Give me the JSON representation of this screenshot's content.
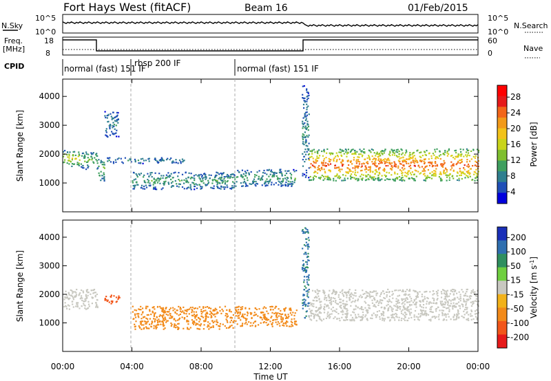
{
  "header": {
    "title": "Fort Hays West (fitACF)",
    "beam": "Beam 16",
    "date": "01/Feb/2015"
  },
  "noise_panel": {
    "left_label": "N.Sky",
    "right_label": "N.Search",
    "left_ticks": [
      "10^5",
      "10^0"
    ],
    "right_ticks": [
      "10^5",
      "10^0"
    ]
  },
  "freq_panel": {
    "left_label_1": "Freq.",
    "left_label_2": "[MHz]",
    "right_label": "Nave",
    "left_ticks": [
      "18",
      "8"
    ],
    "right_ticks": [
      "60",
      "0"
    ]
  },
  "cpid": {
    "label": "CPID",
    "modes": [
      {
        "name": "normal (fast) 151 IF",
        "start_h": 0
      },
      {
        "name": "rbsp 200 IF",
        "start_h": 4.0
      },
      {
        "name": "normal (fast) 151 IF",
        "start_h": 10.0
      }
    ]
  },
  "time_axis": {
    "ticks": [
      "00:00",
      "04:00",
      "08:00",
      "12:00",
      "16:00",
      "20:00",
      "00:00"
    ],
    "label": "Time UT"
  },
  "power_colorbar": {
    "label": "Power [dB]",
    "ticks": [
      "28",
      "24",
      "20",
      "16",
      "12",
      "8",
      "4"
    ],
    "colors": [
      "#0000dd",
      "#1f4fb7",
      "#2f7f8f",
      "#3f9f5f",
      "#7fbf2f",
      "#c9d41a",
      "#f2c21a",
      "#f29a1a",
      "#f2661a",
      "#e61a1a",
      "#ff0000"
    ]
  },
  "velocity_colorbar": {
    "label": "Velocity [m s^-1]",
    "ticks": [
      "200",
      "100",
      "50",
      "15",
      "-15",
      "-50",
      "-100",
      "-200"
    ],
    "colors": [
      "#1a2fb8",
      "#2f6fb0",
      "#2f8f5f",
      "#6fcf3f",
      "#c8c8c0",
      "#f2b21a",
      "#f28a1a",
      "#f2561a",
      "#e61a1a"
    ]
  },
  "chart_data": [
    {
      "type": "heatmap",
      "title": "Power",
      "xlabel": "Time UT",
      "ylabel": "Slant Range [km]",
      "xlim_hours": [
        0,
        24
      ],
      "ylim": [
        0,
        4600
      ],
      "y_ticks": [
        1000,
        2000,
        3000,
        4000
      ],
      "cbar_range": [
        0,
        30
      ],
      "features": [
        {
          "t": [
            0.0,
            1.0
          ],
          "r": [
            1600,
            2150
          ],
          "level": 14
        },
        {
          "t": [
            1.0,
            2.0
          ],
          "r": [
            1500,
            2100
          ],
          "level": 10
        },
        {
          "t": [
            2.0,
            2.4
          ],
          "r": [
            1100,
            1900
          ],
          "level": 10
        },
        {
          "t": [
            2.4,
            3.2
          ],
          "r": [
            2600,
            3500
          ],
          "level": 6
        },
        {
          "t": [
            2.5,
            7.0
          ],
          "r": [
            1700,
            1900
          ],
          "level": 6
        },
        {
          "t": [
            4.0,
            10.0
          ],
          "r": [
            800,
            1400
          ],
          "level": 8
        },
        {
          "t": [
            10.0,
            13.5
          ],
          "r": [
            900,
            1500
          ],
          "level": 8
        },
        {
          "t": [
            13.8,
            14.2
          ],
          "r": [
            1200,
            4400
          ],
          "level": 6
        },
        {
          "t": [
            14.2,
            24.0
          ],
          "r": [
            1100,
            2200
          ],
          "level": 22
        }
      ]
    },
    {
      "type": "heatmap",
      "title": "Velocity",
      "xlabel": "Time UT",
      "ylabel": "Slant Range [km]",
      "xlim_hours": [
        0,
        24
      ],
      "ylim": [
        0,
        4600
      ],
      "y_ticks": [
        1000,
        2000,
        3000,
        4000
      ],
      "cbar_range": [
        -200,
        200
      ],
      "features": [
        {
          "t": [
            0.0,
            2.0
          ],
          "r": [
            1500,
            2200
          ],
          "v": 0
        },
        {
          "t": [
            2.4,
            3.3
          ],
          "r": [
            1700,
            2000
          ],
          "v": -120
        },
        {
          "t": [
            4.0,
            10.0
          ],
          "r": [
            800,
            1600
          ],
          "v": -60
        },
        {
          "t": [
            10.0,
            13.5
          ],
          "r": [
            900,
            1600
          ],
          "v": -50
        },
        {
          "t": [
            13.8,
            14.2
          ],
          "r": [
            1200,
            4400
          ],
          "v": 80
        },
        {
          "t": [
            14.2,
            24.0
          ],
          "r": [
            1100,
            2200
          ],
          "v": 0
        }
      ]
    }
  ]
}
